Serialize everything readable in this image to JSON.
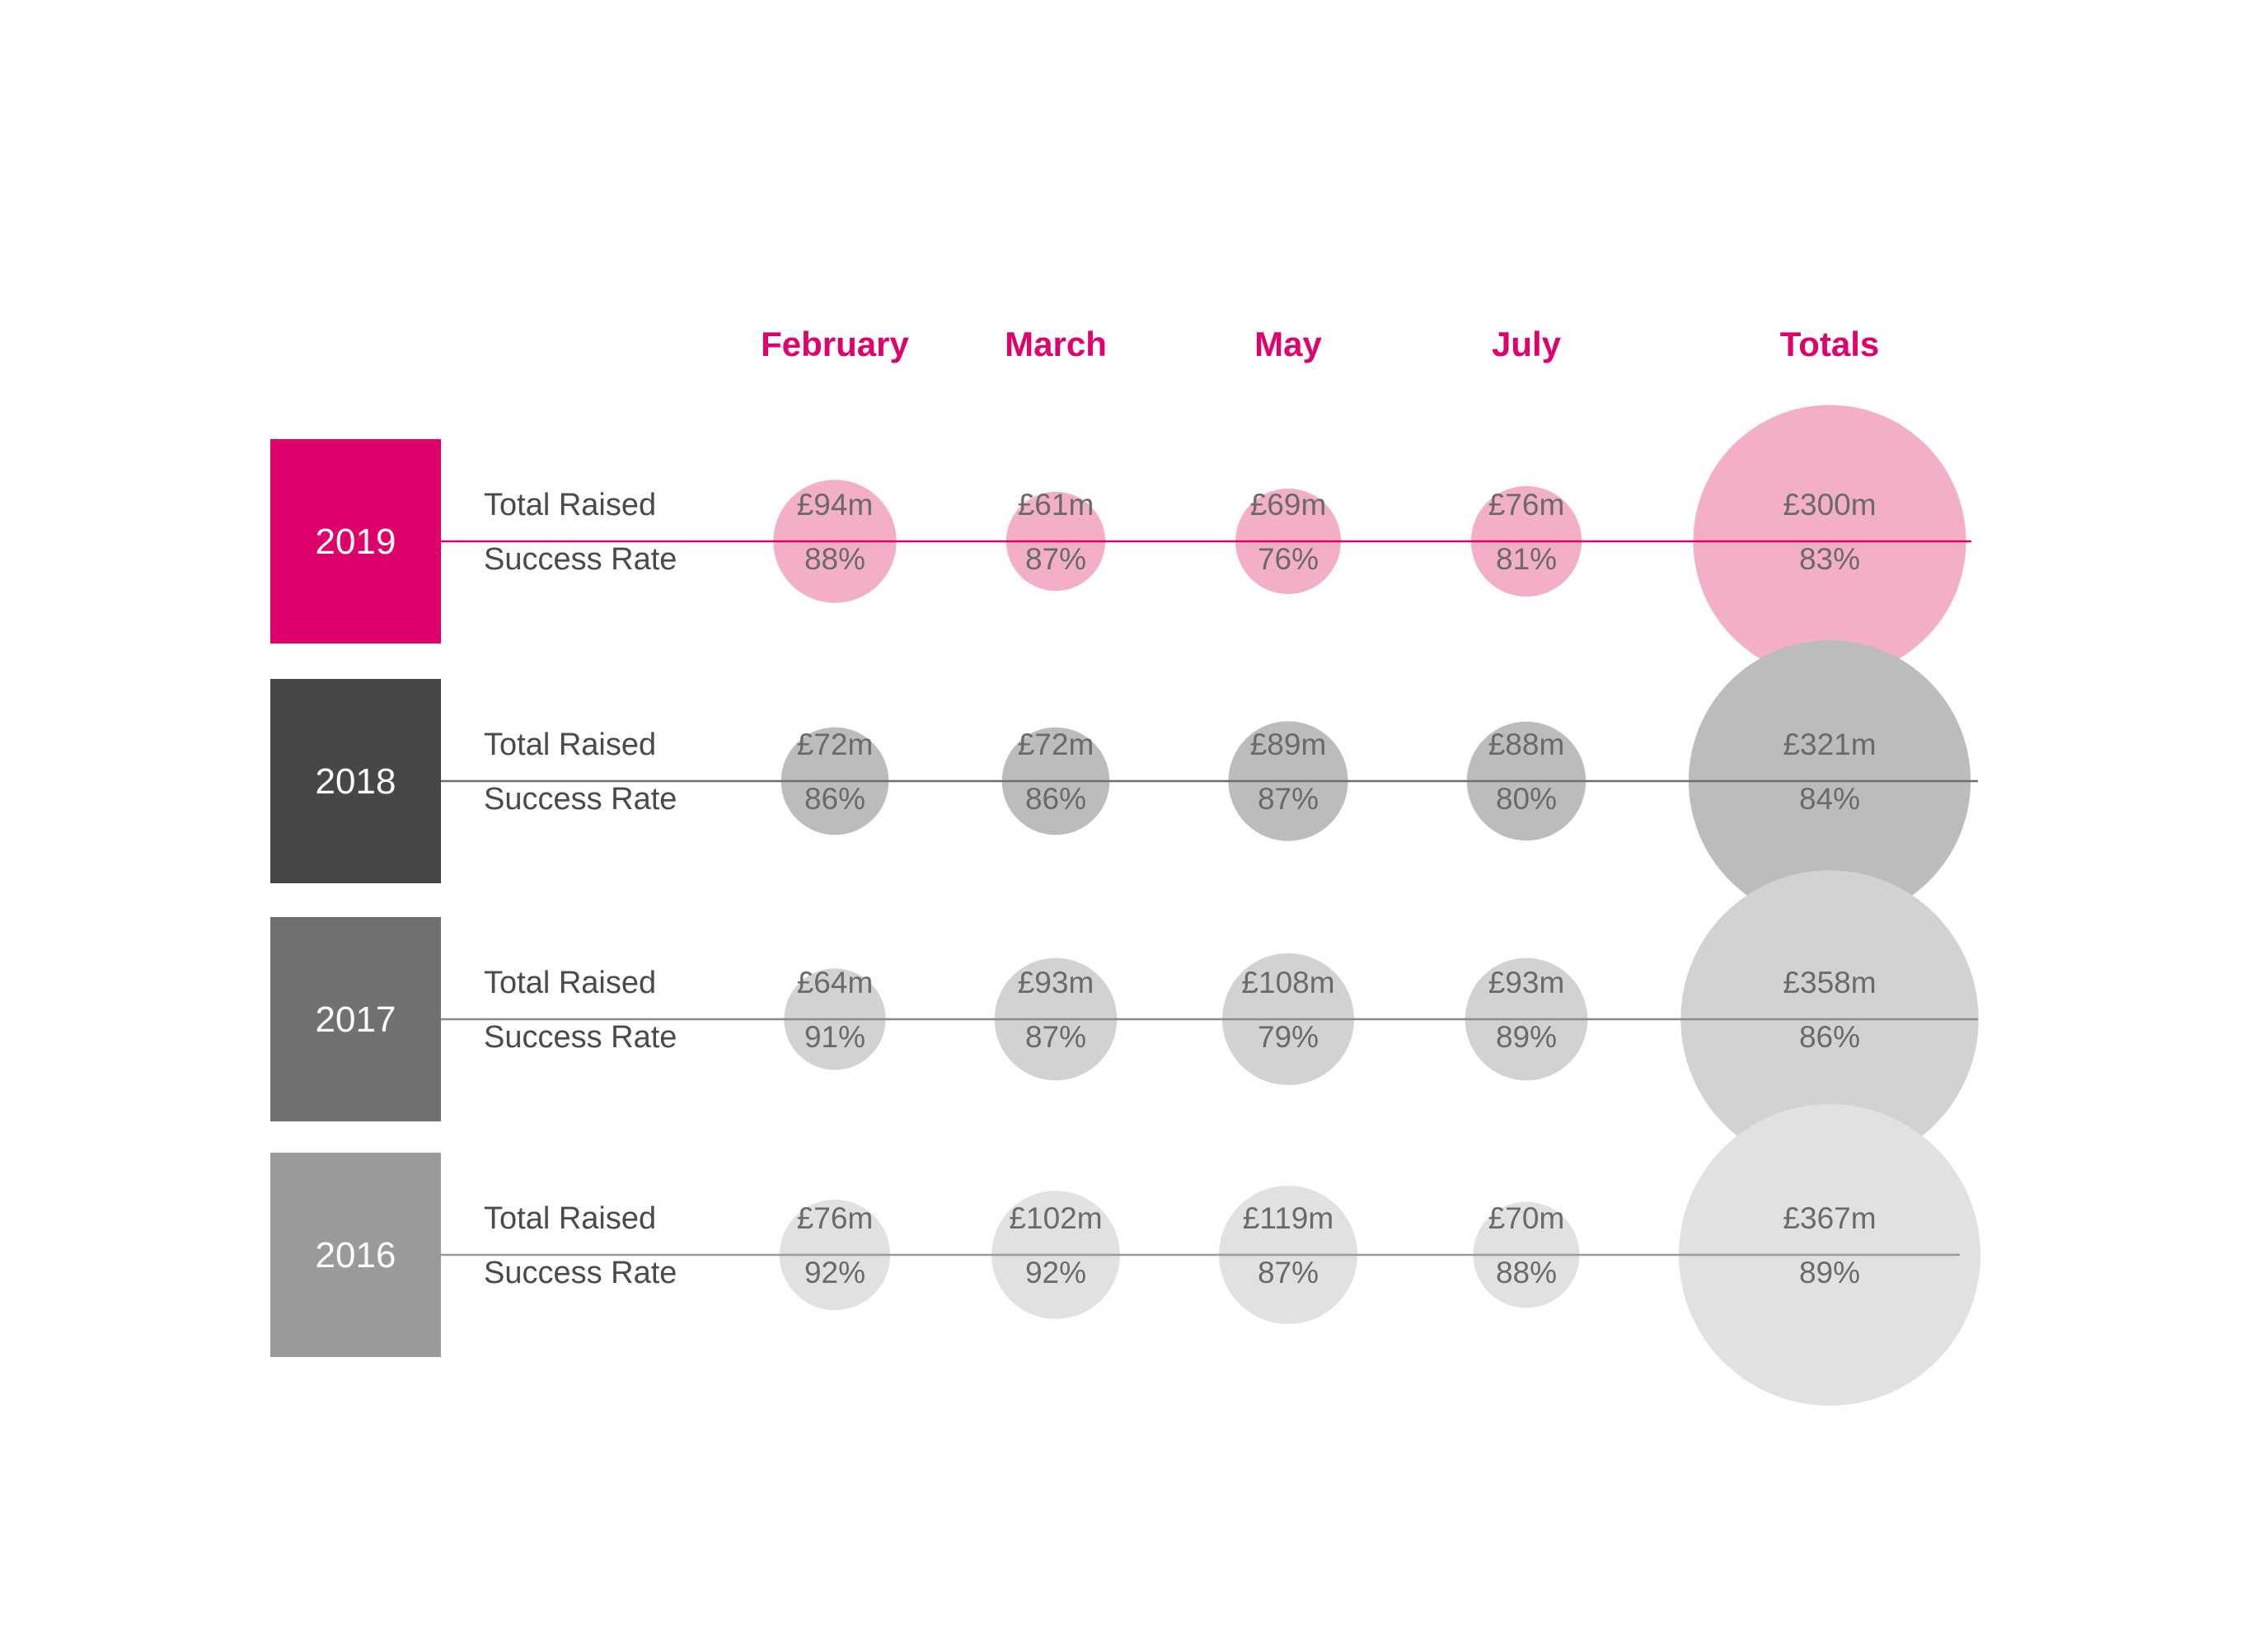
{
  "colors": {
    "accent": "#e0006b",
    "header_text": "#e0006b",
    "label_text": "#4a4a4a",
    "value_text": "#6a6a6a"
  },
  "chart_data": {
    "type": "bubble-table",
    "columns": [
      "February",
      "March",
      "May",
      "July",
      "Totals"
    ],
    "row_labels": [
      "Total Raised",
      "Success Rate"
    ],
    "rows": [
      {
        "year": "2019",
        "label_color": "#e0006b",
        "bubble_color": "#f3b0c5",
        "line_color": "#e0006b",
        "total_raised": [
          "£94m",
          "£61m",
          "£69m",
          "£76m",
          "£300m"
        ],
        "total_raised_values": [
          94,
          61,
          69,
          76,
          300
        ],
        "success_rate": [
          "88%",
          "87%",
          "76%",
          "81%",
          "83%"
        ]
      },
      {
        "year": "2018",
        "label_color": "#474747",
        "bubble_color": "#bcbcbc",
        "line_color": "#6e6e6e",
        "total_raised": [
          "£72m",
          "£72m",
          "£89m",
          "£88m",
          "£321m"
        ],
        "total_raised_values": [
          72,
          72,
          89,
          88,
          321
        ],
        "success_rate": [
          "86%",
          "86%",
          "87%",
          "80%",
          "84%"
        ]
      },
      {
        "year": "2017",
        "label_color": "#717171",
        "bubble_color": "#d2d2d2",
        "line_color": "#8a8a8a",
        "total_raised": [
          "£64m",
          "£93m",
          "£108m",
          "£93m",
          "£358m"
        ],
        "total_raised_values": [
          64,
          93,
          108,
          93,
          358
        ],
        "success_rate": [
          "91%",
          "87%",
          "79%",
          "89%",
          "86%"
        ]
      },
      {
        "year": "2016",
        "label_color": "#9a9a98",
        "bubble_color": "#e1e1e1",
        "line_color": "#9a9a9a",
        "total_raised": [
          "£76m",
          "£102m",
          "£119m",
          "£70m",
          "£367m"
        ],
        "total_raised_values": [
          76,
          102,
          119,
          70,
          367
        ],
        "success_rate": [
          "92%",
          "92%",
          "87%",
          "88%",
          "89%"
        ]
      }
    ]
  }
}
